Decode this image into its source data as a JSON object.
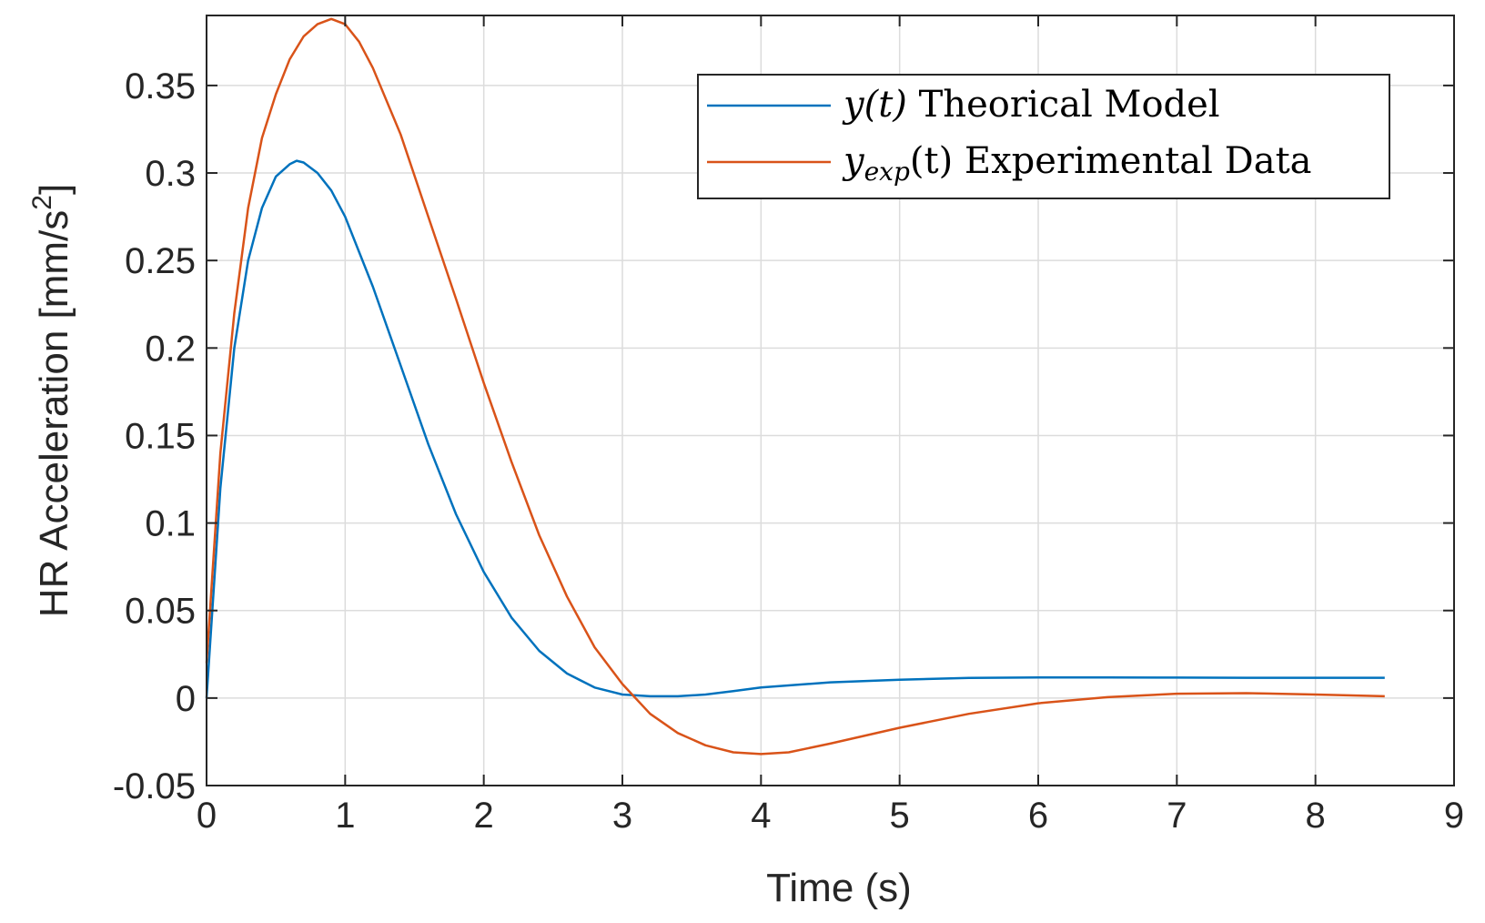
{
  "chart_data": {
    "type": "line",
    "title": "",
    "xlabel": "Time (s)",
    "ylabel_main": "HR Acceleration [mm/s",
    "ylabel_sup": "2",
    "ylabel_close": "]",
    "xlim": [
      0,
      9
    ],
    "ylim": [
      -0.05,
      0.39
    ],
    "xticks": [
      0,
      1,
      2,
      3,
      4,
      5,
      6,
      7,
      8,
      9
    ],
    "xtick_labels": [
      "0",
      "1",
      "2",
      "3",
      "4",
      "5",
      "6",
      "7",
      "8",
      "9"
    ],
    "yticks": [
      -0.05,
      0,
      0.05,
      0.1,
      0.15,
      0.2,
      0.25,
      0.3,
      0.35
    ],
    "ytick_labels": [
      "-0.05",
      "0",
      "0.05",
      "0.1",
      "0.15",
      "0.2",
      "0.25",
      "0.3",
      "0.35"
    ],
    "grid": true,
    "legend_position": "top-right",
    "series": [
      {
        "name": "y(t) Theorical Model",
        "legend_math": "y",
        "legend_arg": "(t)",
        "legend_rest": " Theorical Model",
        "color": "#0072BD",
        "x": [
          0,
          0.1,
          0.2,
          0.3,
          0.4,
          0.5,
          0.6,
          0.65,
          0.7,
          0.8,
          0.9,
          1.0,
          1.2,
          1.4,
          1.6,
          1.8,
          2.0,
          2.2,
          2.4,
          2.6,
          2.8,
          3.0,
          3.2,
          3.4,
          3.6,
          3.8,
          4.0,
          4.5,
          5.0,
          5.5,
          6.0,
          6.5,
          7.0,
          7.5,
          8.0,
          8.5
        ],
        "y": [
          0,
          0.12,
          0.2,
          0.25,
          0.28,
          0.298,
          0.305,
          0.307,
          0.306,
          0.3,
          0.29,
          0.275,
          0.235,
          0.19,
          0.145,
          0.105,
          0.072,
          0.046,
          0.027,
          0.014,
          0.006,
          0.002,
          0.001,
          0.001,
          0.002,
          0.004,
          0.006,
          0.009,
          0.0105,
          0.0115,
          0.0118,
          0.0118,
          0.0117,
          0.0116,
          0.0116,
          0.0116
        ]
      },
      {
        "name": "yexp(t) Experimental Data",
        "legend_math": "y",
        "legend_sub": "exp",
        "legend_arg": "(t)",
        "legend_rest": " Experimental Data",
        "color": "#D95319",
        "x": [
          0,
          0.1,
          0.2,
          0.3,
          0.4,
          0.5,
          0.6,
          0.7,
          0.8,
          0.9,
          1.0,
          1.1,
          1.2,
          1.4,
          1.6,
          1.8,
          2.0,
          2.2,
          2.4,
          2.6,
          2.8,
          3.0,
          3.2,
          3.4,
          3.6,
          3.8,
          4.0,
          4.2,
          4.5,
          5.0,
          5.5,
          6.0,
          6.5,
          7.0,
          7.5,
          8.0,
          8.5
        ],
        "y": [
          0.02,
          0.14,
          0.22,
          0.28,
          0.32,
          0.345,
          0.365,
          0.378,
          0.385,
          0.388,
          0.385,
          0.375,
          0.36,
          0.322,
          0.275,
          0.228,
          0.18,
          0.135,
          0.093,
          0.058,
          0.029,
          0.008,
          -0.009,
          -0.02,
          -0.027,
          -0.031,
          -0.032,
          -0.031,
          -0.026,
          -0.017,
          -0.009,
          -0.003,
          0.0005,
          0.0025,
          0.0028,
          0.002,
          0.001
        ]
      }
    ]
  }
}
